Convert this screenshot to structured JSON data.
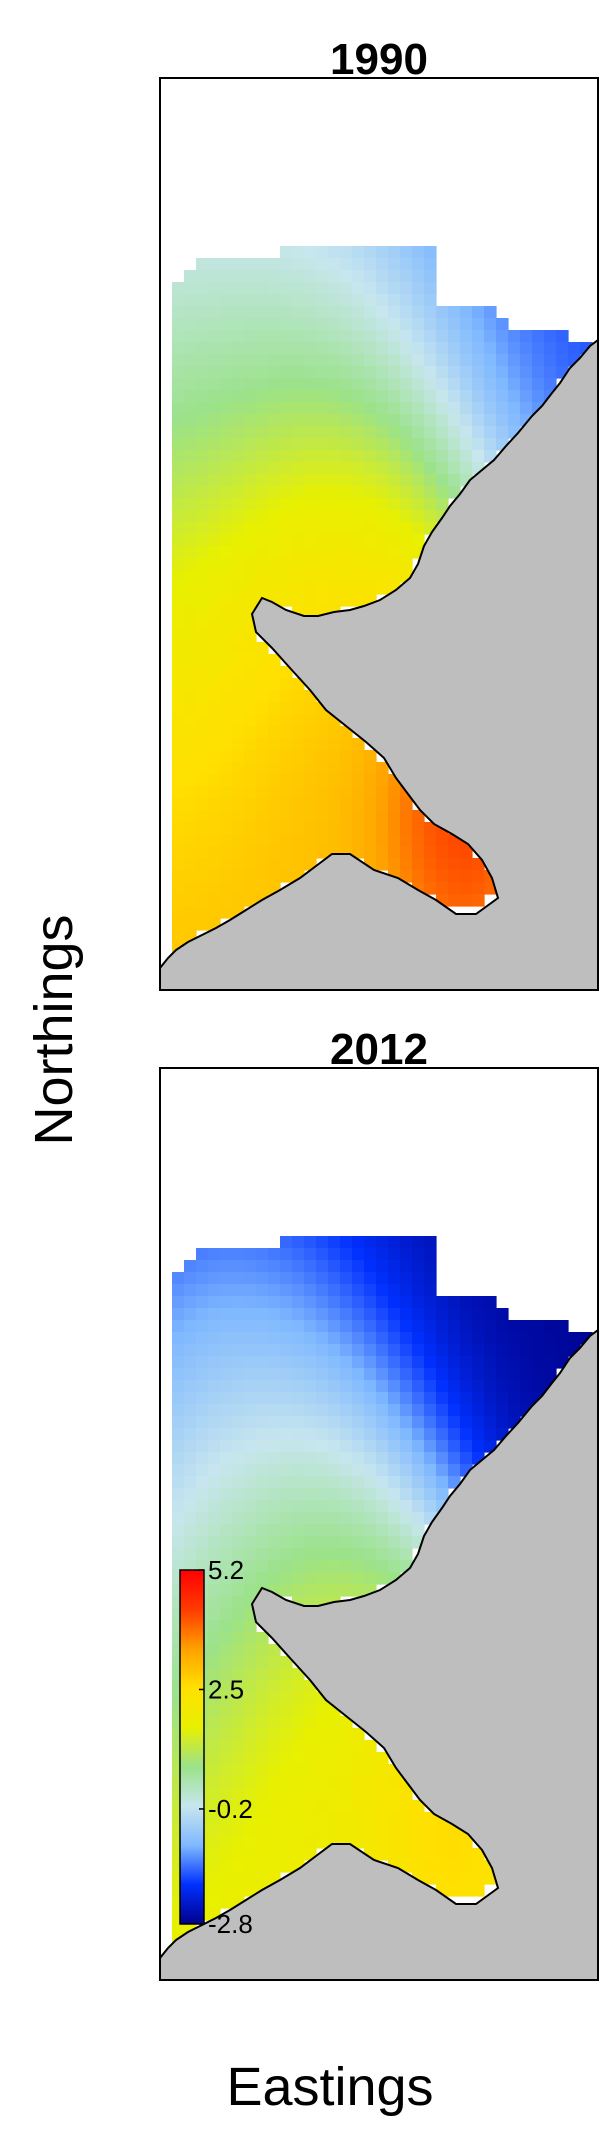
{
  "chart_data": {
    "type": "heatmap",
    "xlabel": "Eastings",
    "ylabel": "Northings",
    "panels": [
      {
        "title": "1990",
        "hotspots": [
          {
            "u": 0.65,
            "v": 0.22,
            "value": 5.2,
            "spread": 0.1
          },
          {
            "u": 0.4,
            "v": 0.38,
            "value": 4.0,
            "spread": 0.18
          },
          {
            "u": 0.25,
            "v": 0.1,
            "value": 3.0,
            "spread": 0.32
          },
          {
            "u": 0.25,
            "v": 0.62,
            "value": 1.5,
            "spread": 0.25
          },
          {
            "u": 0.3,
            "v": 0.87,
            "value": -1.6,
            "spread": 0.3
          },
          {
            "u": 0.85,
            "v": 0.9,
            "value": -1.8,
            "spread": 0.25
          }
        ]
      },
      {
        "title": "2012",
        "hotspots": [
          {
            "u": 0.65,
            "v": 0.22,
            "value": 3.6,
            "spread": 0.12
          },
          {
            "u": 0.4,
            "v": 0.35,
            "value": 3.1,
            "spread": 0.18
          },
          {
            "u": 0.25,
            "v": 0.1,
            "value": 2.2,
            "spread": 0.25
          },
          {
            "u": 0.2,
            "v": 0.55,
            "value": 0.6,
            "spread": 0.2
          },
          {
            "u": 0.3,
            "v": 0.87,
            "value": -2.4,
            "spread": 0.4
          },
          {
            "u": 0.85,
            "v": 0.9,
            "value": -2.8,
            "spread": 0.3
          }
        ]
      }
    ],
    "colorbar": {
      "min": -2.8,
      "max": 5.2,
      "ticks": [
        "5.2",
        "2.5",
        "-0.2",
        "-2.8"
      ],
      "tick_values": [
        5.2,
        2.5,
        -0.2,
        -2.8
      ],
      "colors": [
        "#00008b",
        "#0030ff",
        "#7fb8ff",
        "#c7e6ee",
        "#9be28a",
        "#e8f000",
        "#ffe000",
        "#ffa000",
        "#ff3a00",
        "#ff0000"
      ]
    },
    "land_color": "#bebebe"
  }
}
